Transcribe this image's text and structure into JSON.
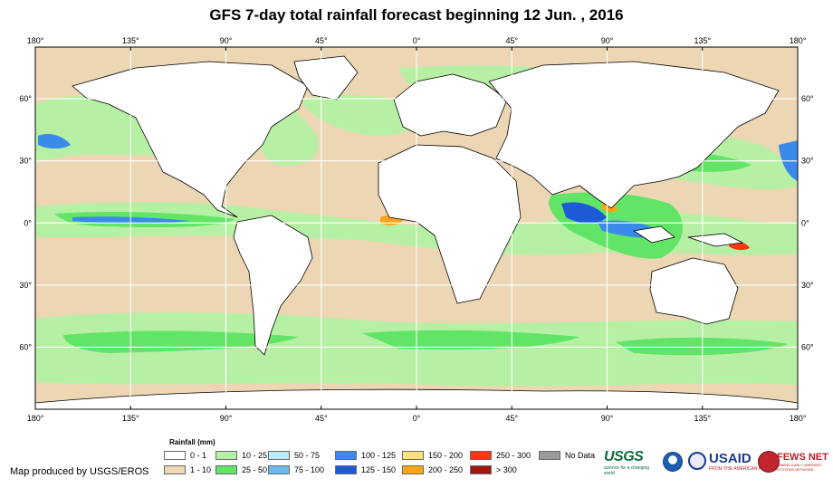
{
  "title": "GFS 7-day total rainfall forecast beginning 12 Jun. , 2016",
  "map": {
    "top_lon_labels": [
      "180°",
      "135°",
      "90°",
      "45°",
      "0°",
      "45°",
      "90°",
      "135°",
      "180°"
    ],
    "bottom_lon_labels": [
      "180°",
      "135°",
      "90°",
      "45°",
      "0°",
      "45°",
      "90°",
      "135°",
      "180°"
    ],
    "left_lat_labels": [
      "60°",
      "30°",
      "0°",
      "30°",
      "60°"
    ],
    "right_lat_labels": [
      "60°",
      "30°",
      "0°",
      "30°",
      "60°"
    ],
    "lon_values": [
      -180,
      -135,
      -90,
      -45,
      0,
      45,
      90,
      135,
      180
    ],
    "lat_values": [
      60,
      30,
      0,
      -30,
      -60
    ],
    "colors": {
      "ocean_dry": "#ecd6b4",
      "land": "#ffffff",
      "light_rain": "#b6f0a4",
      "moderate_rain": "#62e466",
      "heavy_rain": "#3a8aea",
      "very_heavy_rain": "#1c5ad8",
      "extreme_rain": "#ffa414",
      "coastline": "#000000"
    }
  },
  "legend": {
    "title": "Rainfall (mm)",
    "items": [
      {
        "label": "0 - 1",
        "color": "#ffffff"
      },
      {
        "label": "1 - 10",
        "color": "#ecd6b4"
      },
      {
        "label": "10 - 25",
        "color": "#b6f0a4"
      },
      {
        "label": "25 - 50",
        "color": "#62e466"
      },
      {
        "label": "50 - 75",
        "color": "#bceaf8"
      },
      {
        "label": "75 - 100",
        "color": "#6ab8ee"
      },
      {
        "label": "100 - 125",
        "color": "#3a8aea"
      },
      {
        "label": "125 - 150",
        "color": "#1c5ad8"
      },
      {
        "label": "150 - 200",
        "color": "#ffe27a"
      },
      {
        "label": "200 - 250",
        "color": "#ffa414"
      },
      {
        "label": "250 - 300",
        "color": "#f53a10"
      },
      {
        "label": "> 300",
        "color": "#a01812"
      },
      {
        "label": "No Data",
        "color": "#9a9a9a"
      }
    ]
  },
  "credit": "Map produced by USGS/EROS",
  "logos": {
    "usgs": "USGS",
    "usgs_tagline": "science for a changing world",
    "usaid": "USAID",
    "usaid_tagline": "FROM THE AMERICAN PEOPLE",
    "fews": "FEWS NET",
    "fews_tagline": "FAMINE EARLY WARNING SYSTEMS NETWORK"
  }
}
